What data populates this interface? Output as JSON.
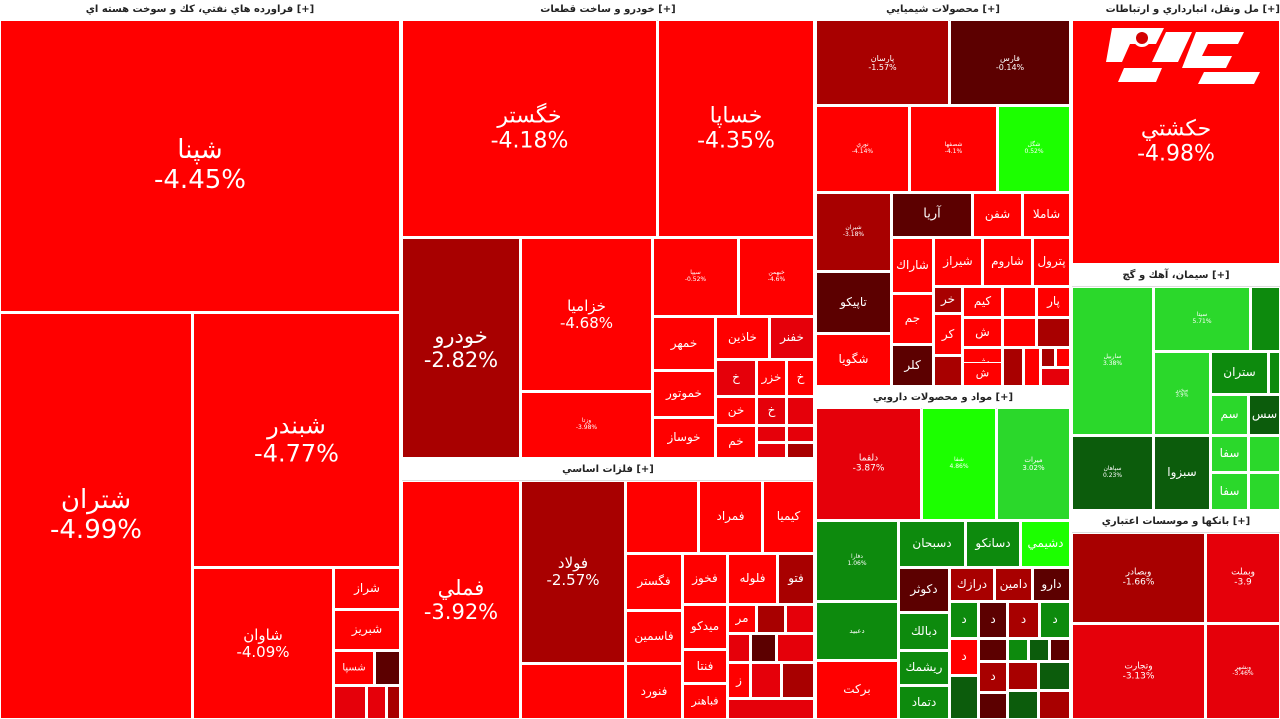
{
  "sectors": {
    "oil": {
      "title": "فراورده هاي نفتي، كك و سوخت هسته اي [+]"
    },
    "auto": {
      "title": "خودرو و ساخت قطعات [+]"
    },
    "chem": {
      "title": "محصولات شيميايي [+]"
    },
    "transport": {
      "title": "مل ونقل، انبارداري و ارتباطات [+]"
    },
    "metals": {
      "title": "فلزات اساسي [+]"
    },
    "pharma": {
      "title": "مواد و محصولات دارويي [+]"
    },
    "cement": {
      "title": "سيمان، آهك و گچ [+]"
    },
    "banks": {
      "title": "بانكها و موسسات اعتباري [+]"
    }
  },
  "tiles": {
    "shepna": {
      "symbol": "شپنا",
      "change": "-4.45%"
    },
    "shetran": {
      "symbol": "شتران",
      "change": "-4.99%"
    },
    "shebandar": {
      "symbol": "شبندر",
      "change": "-4.77%"
    },
    "shavan": {
      "symbol": "شاوان",
      "change": "-4.09%"
    },
    "shiraz": {
      "symbol": "شراز"
    },
    "shabriz": {
      "symbol": "شبريز"
    },
    "shesepa": {
      "symbol": "شسپا"
    },
    "khegostar": {
      "symbol": "خگستر",
      "change": "-4.18%"
    },
    "khesapa": {
      "symbol": "خساپا",
      "change": "-4.35%"
    },
    "khodro": {
      "symbol": "خودرو",
      "change": "-2.82%"
    },
    "kharamia": {
      "symbol": "خزاميا",
      "change": "-4.68%"
    },
    "khemhr": {
      "symbol": "خمهر"
    },
    "khazin": {
      "symbol": "خاذين"
    },
    "khafanar": {
      "symbol": "خفنر"
    },
    "khemotor": {
      "symbol": "خموتور"
    },
    "khovas": {
      "symbol": "خوساز"
    },
    "khazar": {
      "symbol": "خزر"
    },
    "vezta": {
      "symbol": "وزتا",
      "change": "-3.98%"
    },
    "kh1": {
      "symbol": "خ"
    },
    "kh2": {
      "symbol": "خ"
    },
    "kh3": {
      "symbol": "خ"
    },
    "khon": {
      "symbol": "خن"
    },
    "khem": {
      "symbol": "خم"
    },
    "s1": {
      "symbol": "سيپا",
      "change": "-0.52%"
    },
    "s2": {
      "symbol": "خبهمن",
      "change": "-4.6%"
    },
    "famli": {
      "symbol": "فملي",
      "change": "-3.92%"
    },
    "foolad": {
      "symbol": "فولاد",
      "change": "-2.57%"
    },
    "fomrad": {
      "symbol": "فمراد"
    },
    "kimia": {
      "symbol": "كيميا"
    },
    "fegostar": {
      "symbol": "فگستر"
    },
    "fekhoz": {
      "symbol": "فخوز"
    },
    "felouleh": {
      "symbol": "فلوله"
    },
    "fasemin": {
      "symbol": "فاسمين"
    },
    "midko": {
      "symbol": "ميدكو"
    },
    "fenata": {
      "symbol": "فنتا"
    },
    "fenvard": {
      "symbol": "فنورد"
    },
    "fabahonar": {
      "symbol": "فباهنر"
    },
    "feto": {
      "symbol": "فتو"
    },
    "fa1": {
      "symbol": "فسا"
    },
    "mar": {
      "symbol": "مر"
    },
    "z": {
      "symbol": "ز"
    },
    "fkolah": {
      "symbol": "فاما"
    },
    "parsan": {
      "symbol": "پارسان",
      "change": "-1.57%"
    },
    "fars": {
      "symbol": "فارس",
      "change": "-0.14%"
    },
    "noori": {
      "symbol": "نوري",
      "change": "-4.14%"
    },
    "shesafahan": {
      "symbol": "شصفها",
      "change": "-4.1%"
    },
    "shegol": {
      "symbol": "شگل",
      "change": "0.52%"
    },
    "aria": {
      "symbol": "آريا"
    },
    "shafan": {
      "symbol": "شفن"
    },
    "shamla": {
      "symbol": "شاملا"
    },
    "shesina": {
      "symbol": "شيران",
      "change": "-3.18%"
    },
    "sharak": {
      "symbol": "شاراك"
    },
    "shiraz2": {
      "symbol": "شيراز"
    },
    "sharom": {
      "symbol": "شاروم"
    },
    "petrol": {
      "symbol": "پترول"
    },
    "tapiko": {
      "symbol": "تاپيكو"
    },
    "khar": {
      "symbol": "خر"
    },
    "kim": {
      "symbol": "كيم"
    },
    "par": {
      "symbol": "پار"
    },
    "jam": {
      "symbol": "جم"
    },
    "sh1": {
      "symbol": "ش"
    },
    "kar": {
      "symbol": "كر"
    },
    "sh2": {
      "symbol": "ش"
    },
    "shegoya": {
      "symbol": "شگويا"
    },
    "kelar": {
      "symbol": "كلر"
    },
    "sh3": {
      "symbol": "ش"
    },
    "hekashti": {
      "symbol": "حكشتي",
      "change": "-4.98%"
    },
    "dalqma": {
      "symbol": "دلقما",
      "change": "-3.87%"
    },
    "shefa": {
      "symbol": "شفا",
      "change": "4.86%"
    },
    "mirat": {
      "symbol": "ميرات",
      "change": "3.02%"
    },
    "dasobhan": {
      "symbol": "دسبحان"
    },
    "dasanko": {
      "symbol": "دسانكو"
    },
    "dashimi": {
      "symbol": "دشيمي"
    },
    "deko": {
      "symbol": "دكوثر"
    },
    "darak": {
      "symbol": "درازك"
    },
    "damin": {
      "symbol": "دامين"
    },
    "daro": {
      "symbol": "دارو"
    },
    "dabalk": {
      "symbol": "دبالك"
    },
    "rishmak": {
      "symbol": "ريشمك"
    },
    "damad": {
      "symbol": "دتماد"
    },
    "barkat": {
      "symbol": "بركت"
    },
    "dd1": {
      "symbol": "د"
    },
    "dd2": {
      "symbol": "د"
    },
    "dd3": {
      "symbol": "د"
    },
    "dd4": {
      "symbol": "د"
    },
    "dd5": {
      "symbol": "د"
    },
    "dd6": {
      "symbol": "د"
    },
    "pharmaG1": {
      "symbol": "دفارا",
      "change": "1.06%"
    },
    "pharmaG2": {
      "symbol": "دعبيد"
    },
    "sasitan": {
      "symbol": "ساربيل",
      "change": "3.38%"
    },
    "sg2": {
      "symbol": "سيتا",
      "change": "5.71%"
    },
    "sg3": {
      "symbol": "سخزر",
      "change": "3.9%"
    },
    "setran": {
      "symbol": "ستران"
    },
    "sg5": {
      "symbol": "سس"
    },
    "sem": {
      "symbol": "سم"
    },
    "sefahan": {
      "symbol": "سپاهان",
      "change": "0.23%"
    },
    "sabzva": {
      "symbol": "سبزوا"
    },
    "sefa1": {
      "symbol": "سفا"
    },
    "sefa2": {
      "symbol": "سفا"
    },
    "vebsader": {
      "symbol": "وبصادر",
      "change": "-1.66%"
    },
    "vetajarat": {
      "symbol": "وتجارت",
      "change": "-3.13%"
    },
    "b3": {
      "symbol": "وبملت",
      "change": "-3.9"
    },
    "vebshahr": {
      "symbol": "وبشهر",
      "change": "-3.46%"
    }
  },
  "colors": {
    "loss_strong": "#ff0000",
    "loss_mid": "#e5000a",
    "loss_dark": "#a80000",
    "loss_deep": "#5c0000",
    "gain_bright": "#1cff00",
    "gain_mid": "#2bd82b",
    "gain_dark": "#0d8a0d",
    "gain_deep": "#0c5c0c"
  },
  "logo": {
    "alt": "rokna"
  }
}
